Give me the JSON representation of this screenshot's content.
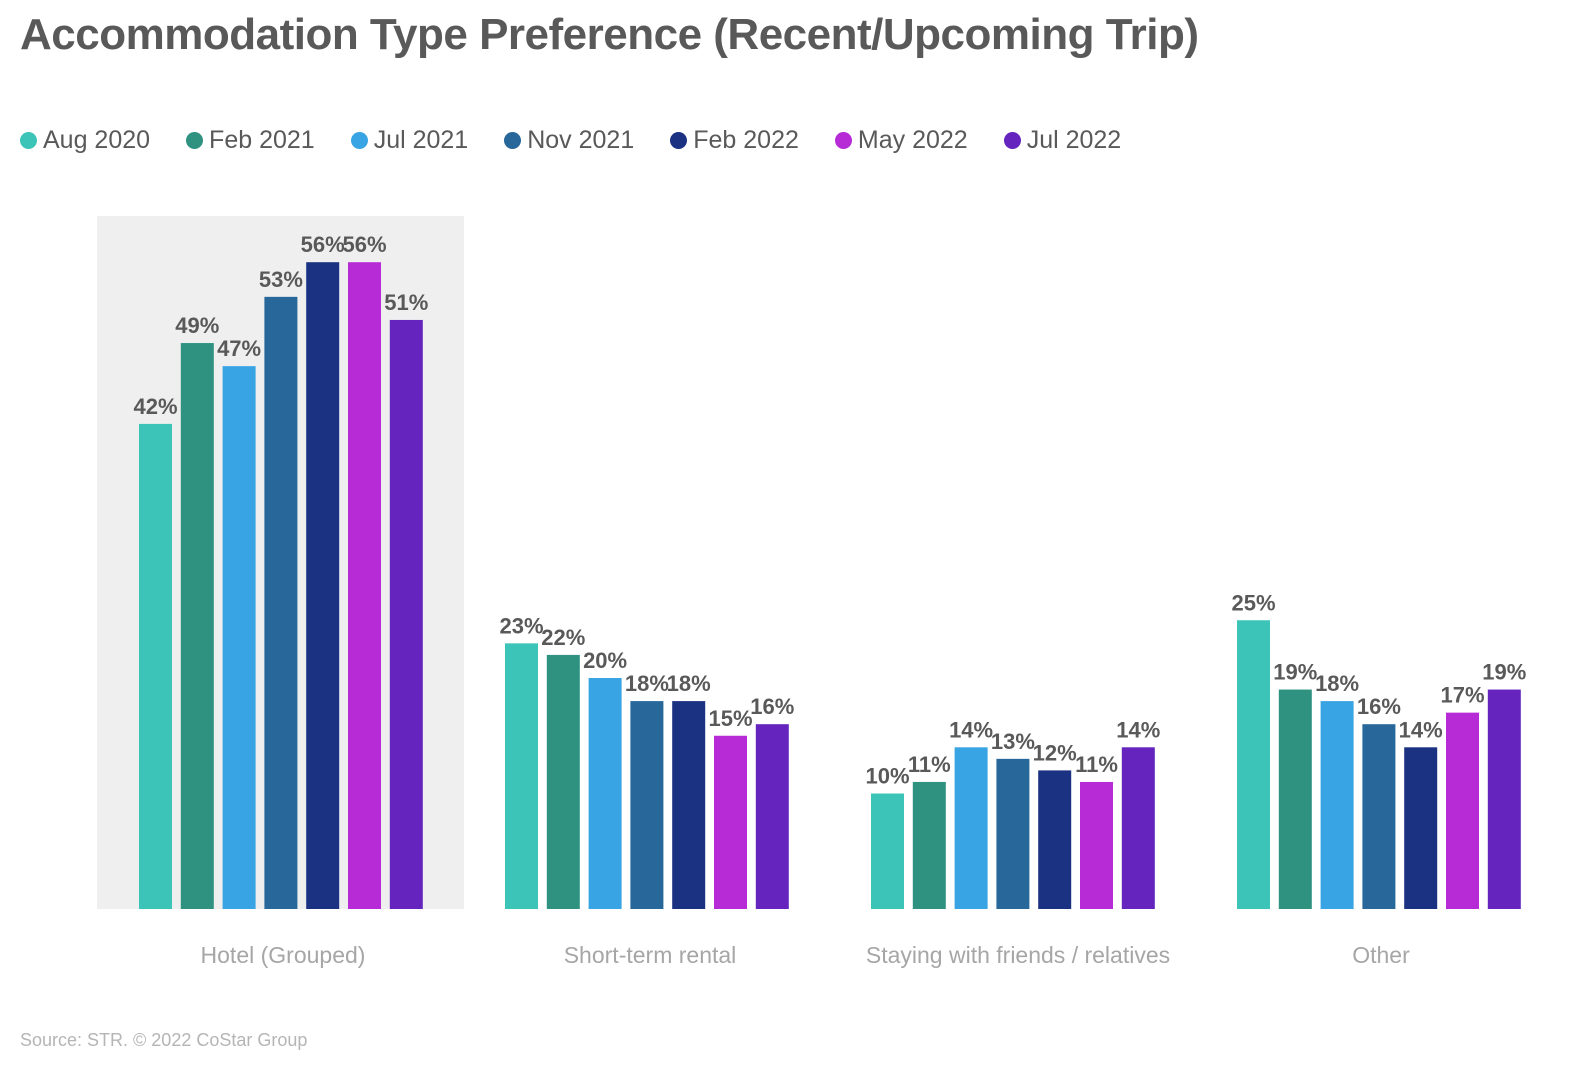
{
  "chart_data": {
    "type": "bar",
    "title": "Accommodation Type Preference (Recent/Upcoming Trip)",
    "source": "Source: STR. © 2022 CoStar Group",
    "categories": [
      "Hotel (Grouped)",
      "Short-term rental",
      "Staying with friends / relatives",
      "Other"
    ],
    "highlighted_category": "Hotel (Grouped)",
    "series": [
      {
        "name": "Aug 2020",
        "color": "#3dc4b8",
        "values": [
          42,
          23,
          10,
          25
        ]
      },
      {
        "name": "Feb 2021",
        "color": "#2f9281",
        "values": [
          49,
          22,
          11,
          19
        ]
      },
      {
        "name": "Jul 2021",
        "color": "#38a4e4",
        "values": [
          47,
          20,
          14,
          18
        ]
      },
      {
        "name": "Nov 2021",
        "color": "#27679a",
        "values": [
          53,
          18,
          13,
          16
        ]
      },
      {
        "name": "Feb 2022",
        "color": "#1b3282",
        "values": [
          56,
          18,
          12,
          14
        ]
      },
      {
        "name": "May 2022",
        "color": "#b62bd6",
        "values": [
          56,
          15,
          11,
          17
        ]
      },
      {
        "name": "Jul 2022",
        "color": "#6424bd",
        "values": [
          51,
          16,
          14,
          19
        ]
      }
    ],
    "value_suffix": "%",
    "ylim": [
      0,
      60
    ],
    "legend_position": "top-left",
    "grid": false
  }
}
